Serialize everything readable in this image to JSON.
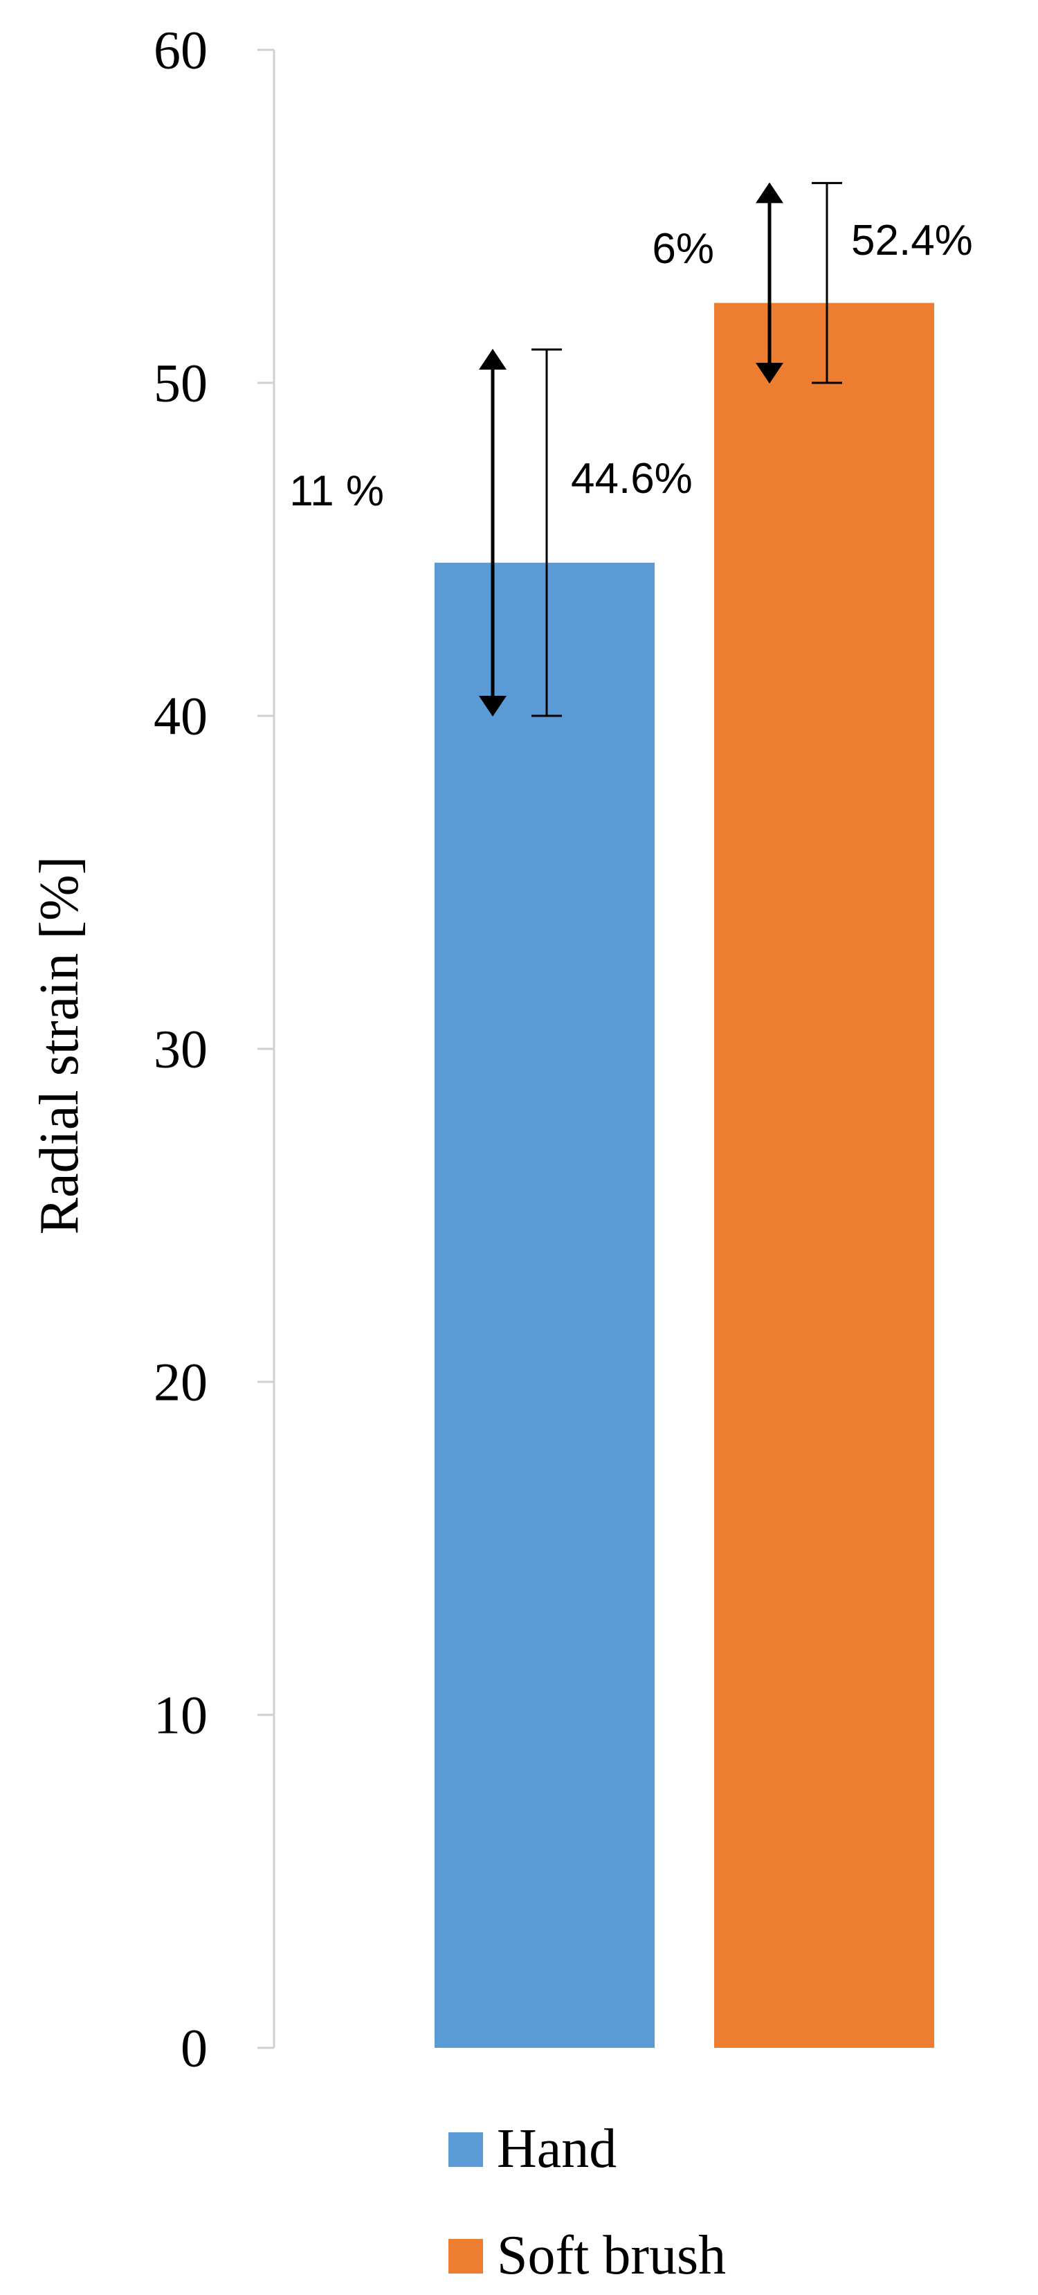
{
  "chart_data": {
    "type": "bar",
    "ylabel": "Radial strain [%]",
    "ylim": [
      0,
      60
    ],
    "yticks": [
      "0",
      "10",
      "20",
      "30",
      "40",
      "50",
      "60"
    ],
    "grid": false,
    "legend_position": "bottom",
    "categories": [
      "Hand",
      "Soft brush"
    ],
    "series": [
      {
        "name": "Hand",
        "value": 44.6,
        "error_low": 40,
        "error_high": 51,
        "color": "#5B9BD5",
        "value_label": "44.6%",
        "spread_label": "11 %"
      },
      {
        "name": "Soft brush",
        "value": 52.4,
        "error_low": 50,
        "error_high": 56,
        "color": "#ED7D31",
        "value_label": "52.4%",
        "spread_label": "6%"
      }
    ],
    "spread_arrows": [
      {
        "series": "Hand",
        "from": 40,
        "to": 51
      },
      {
        "series": "Soft brush",
        "from": 50,
        "to": 56
      }
    ]
  }
}
